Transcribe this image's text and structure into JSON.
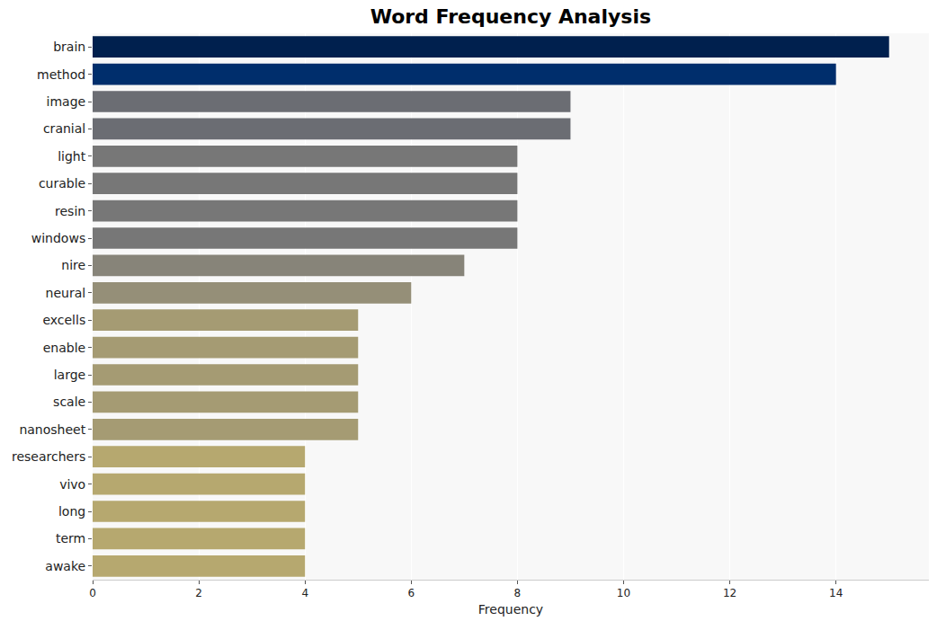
{
  "chart_data": {
    "type": "bar",
    "orientation": "horizontal",
    "title": "Word Frequency Analysis",
    "x_label": "Frequency",
    "categories": [
      "brain",
      "method",
      "image",
      "cranial",
      "light",
      "curable",
      "resin",
      "windows",
      "nire",
      "neural",
      "excells",
      "enable",
      "large",
      "scale",
      "nanosheet",
      "researchers",
      "vivo",
      "long",
      "term",
      "awake"
    ],
    "values": [
      15,
      14,
      9,
      9,
      8,
      8,
      8,
      8,
      7,
      6,
      5,
      5,
      5,
      5,
      5,
      4,
      4,
      4,
      4,
      4
    ],
    "colors": [
      "#00204e",
      "#002e6c",
      "#6b6d73",
      "#6b6d73",
      "#777777",
      "#777777",
      "#777777",
      "#777777",
      "#878479",
      "#958f78",
      "#a59b73",
      "#a59b73",
      "#a59b73",
      "#a59b73",
      "#a59b73",
      "#b6a86f",
      "#b6a86f",
      "#b6a86f",
      "#b6a86f",
      "#b6a86f"
    ],
    "xlim": [
      0,
      15.75
    ],
    "xticks": [
      0,
      2,
      4,
      6,
      8,
      10,
      12,
      14
    ],
    "grid": true
  }
}
